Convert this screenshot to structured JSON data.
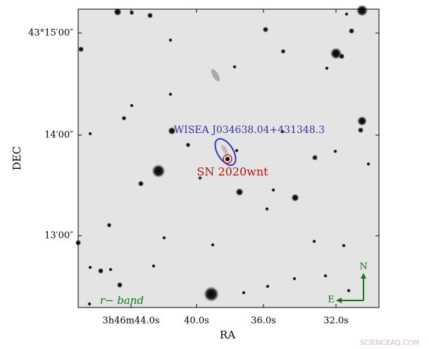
{
  "axes": {
    "x_label": "RA",
    "y_label": "DEC",
    "x_ticks": [
      "3h46m44.0s",
      "40.0s",
      "36.0s",
      "32.0s"
    ],
    "y_ticks": [
      "43°15′00″",
      "14′00″",
      "13′00″"
    ]
  },
  "annotations": {
    "galaxy": "WISEA J034638.04+431348.3",
    "supernova": "SN 2020wnt",
    "band": "r− band",
    "north": "N",
    "east": "E"
  },
  "watermark": "SCIENCEAQ.COM"
}
